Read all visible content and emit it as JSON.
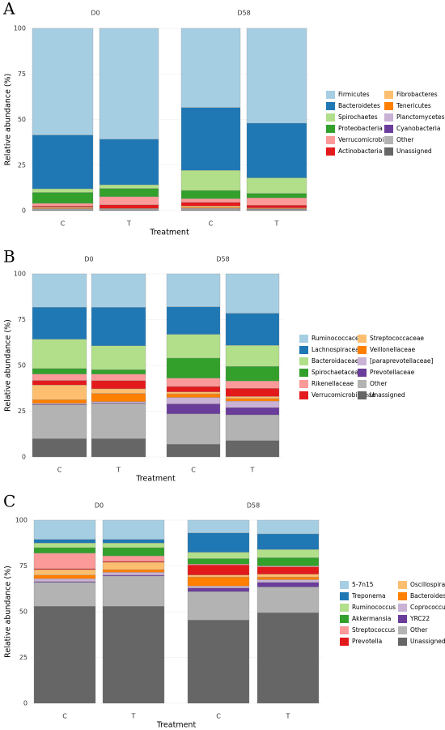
{
  "chart_data": [
    {
      "type": "stacked_bar",
      "panel": "A",
      "facets": [
        "D0",
        "D58"
      ],
      "categories": [
        "C",
        "T",
        "C",
        "T"
      ],
      "x_label": "Treatment",
      "y_label": "Relative abundance (%)",
      "ylim": [
        0,
        100
      ],
      "yticks": [
        0,
        25,
        50,
        75,
        100
      ],
      "grid": true,
      "series": [
        {
          "name": "Firmicutes",
          "color": "#a6cee3",
          "values": [
            58.5,
            60.8,
            43.4,
            52
          ]
        },
        {
          "name": "Bacteroidetes",
          "color": "#1f78b4",
          "values": [
            29.5,
            25,
            34.5,
            30
          ]
        },
        {
          "name": "Spirochaetes",
          "color": "#b2df8a",
          "values": [
            2,
            2,
            11,
            8.5
          ]
        },
        {
          "name": "Proteobacteria",
          "color": "#33a02c",
          "values": [
            6,
            4.5,
            4.5,
            2.5
          ]
        },
        {
          "name": "Verrucomicrobia",
          "color": "#fb9a99",
          "values": [
            1.5,
            4.5,
            2,
            4
          ]
        },
        {
          "name": "Actinobacteria",
          "color": "#e31a1c",
          "values": [
            0.6,
            2,
            2,
            1.5
          ]
        },
        {
          "name": "Fibrobacteres",
          "color": "#fdbf6f",
          "values": [
            0.5,
            0.2,
            0.8,
            0.3
          ]
        },
        {
          "name": "Tenericutes",
          "color": "#ff7f00",
          "values": [
            0.3,
            0.1,
            0.5,
            0.3
          ]
        },
        {
          "name": "Planctomycetes",
          "color": "#cab2d6",
          "values": [
            0.2,
            0.1,
            0.3,
            0.2
          ]
        },
        {
          "name": "Cyanobacteria",
          "color": "#6a3d9a",
          "values": [
            0.1,
            0.1,
            0.2,
            0.1
          ]
        },
        {
          "name": "Other",
          "color": "#b3b3b3",
          "values": [
            0.5,
            0.4,
            0.5,
            0.3
          ]
        },
        {
          "name": "Unassigned",
          "color": "#666666",
          "values": [
            0.3,
            0.3,
            0.3,
            0.3
          ]
        }
      ]
    },
    {
      "type": "stacked_bar",
      "panel": "B",
      "facets": [
        "D0",
        "D58"
      ],
      "categories": [
        "C",
        "T",
        "C",
        "T"
      ],
      "x_label": "Treatment",
      "y_label": "Relative abundance (%)",
      "ylim": [
        0,
        100
      ],
      "yticks": [
        0,
        25,
        50,
        75,
        100
      ],
      "grid": true,
      "series": [
        {
          "name": "Ruminococcaceae",
          "color": "#a6cee3",
          "values": [
            18.2,
            18.3,
            18,
            21.5
          ]
        },
        {
          "name": "Lachnospiraceae",
          "color": "#1f78b4",
          "values": [
            17.5,
            21,
            15,
            17.5
          ]
        },
        {
          "name": "Bacteroidaceae",
          "color": "#b2df8a",
          "values": [
            16,
            13,
            13,
            11.5
          ]
        },
        {
          "name": "Spirochaetaceae",
          "color": "#33a02c",
          "values": [
            3,
            2.5,
            11,
            8
          ]
        },
        {
          "name": "Rikenellaceae",
          "color": "#fb9a99",
          "values": [
            3.5,
            3.5,
            4.5,
            4
          ]
        },
        {
          "name": "Verrucomicrobiaceae",
          "color": "#e31a1c",
          "values": [
            2.5,
            4.5,
            3,
            4.5
          ]
        },
        {
          "name": "Streptococcaceae",
          "color": "#fdbf6f",
          "values": [
            8,
            2.5,
            1,
            1
          ]
        },
        {
          "name": "Veillonellaceae",
          "color": "#ff7f00",
          "values": [
            2,
            4.5,
            2,
            1.5
          ]
        },
        {
          "name": "[paraprevotellaceae]",
          "color": "#cab2d6",
          "values": [
            0.5,
            0.7,
            3.5,
            3.5
          ]
        },
        {
          "name": "Prevotellaceae",
          "color": "#6a3d9a",
          "values": [
            0.3,
            0.3,
            5.5,
            4
          ]
        },
        {
          "name": "Other",
          "color": "#b3b3b3",
          "values": [
            18.5,
            19.2,
            16.5,
            14
          ]
        },
        {
          "name": "Unassigned",
          "color": "#666666",
          "values": [
            10,
            10,
            7,
            9
          ]
        }
      ]
    },
    {
      "type": "stacked_bar",
      "panel": "C",
      "facets": [
        "D0",
        "D58"
      ],
      "categories": [
        "C",
        "T",
        "C",
        "T"
      ],
      "x_label": "Treatment",
      "y_label": "Relative abundance (%)",
      "ylim": [
        0,
        100
      ],
      "yticks": [
        0,
        25,
        50,
        75,
        100
      ],
      "grid": true,
      "series": [
        {
          "name": "5-7n15",
          "color": "#a6cee3",
          "values": [
            10.5,
            10.5,
            7,
            7.5
          ]
        },
        {
          "name": "Treponema",
          "color": "#1f78b4",
          "values": [
            2,
            2,
            10.5,
            8.5
          ]
        },
        {
          "name": "Ruminococcus",
          "color": "#b2df8a",
          "values": [
            2.5,
            2.5,
            3.5,
            4.5
          ]
        },
        {
          "name": "Akkermansia",
          "color": "#33a02c",
          "values": [
            3,
            4.5,
            3,
            4.5
          ]
        },
        {
          "name": "Streptococcus",
          "color": "#fb9a99",
          "values": [
            8.5,
            3,
            0.5,
            0.5
          ]
        },
        {
          "name": "Prevotella",
          "color": "#e31a1c",
          "values": [
            0.5,
            0.5,
            5.5,
            4
          ]
        },
        {
          "name": "Oscillospira",
          "color": "#fdbf6f",
          "values": [
            3,
            4,
            1,
            1.5
          ]
        },
        {
          "name": "Bacteroides",
          "color": "#ff7f00",
          "values": [
            2,
            1.5,
            5,
            1.5
          ]
        },
        {
          "name": "Coprococcus",
          "color": "#cab2d6",
          "values": [
            1.5,
            1.5,
            1,
            1.5
          ]
        },
        {
          "name": "YRC22",
          "color": "#6a3d9a",
          "values": [
            0.5,
            0.5,
            2,
            2.5
          ]
        },
        {
          "name": "Other",
          "color": "#b3b3b3",
          "values": [
            13,
            16.5,
            15.5,
            14
          ]
        },
        {
          "name": "Unassigned",
          "color": "#666666",
          "values": [
            53,
            53,
            45.5,
            49.5
          ]
        }
      ]
    }
  ]
}
